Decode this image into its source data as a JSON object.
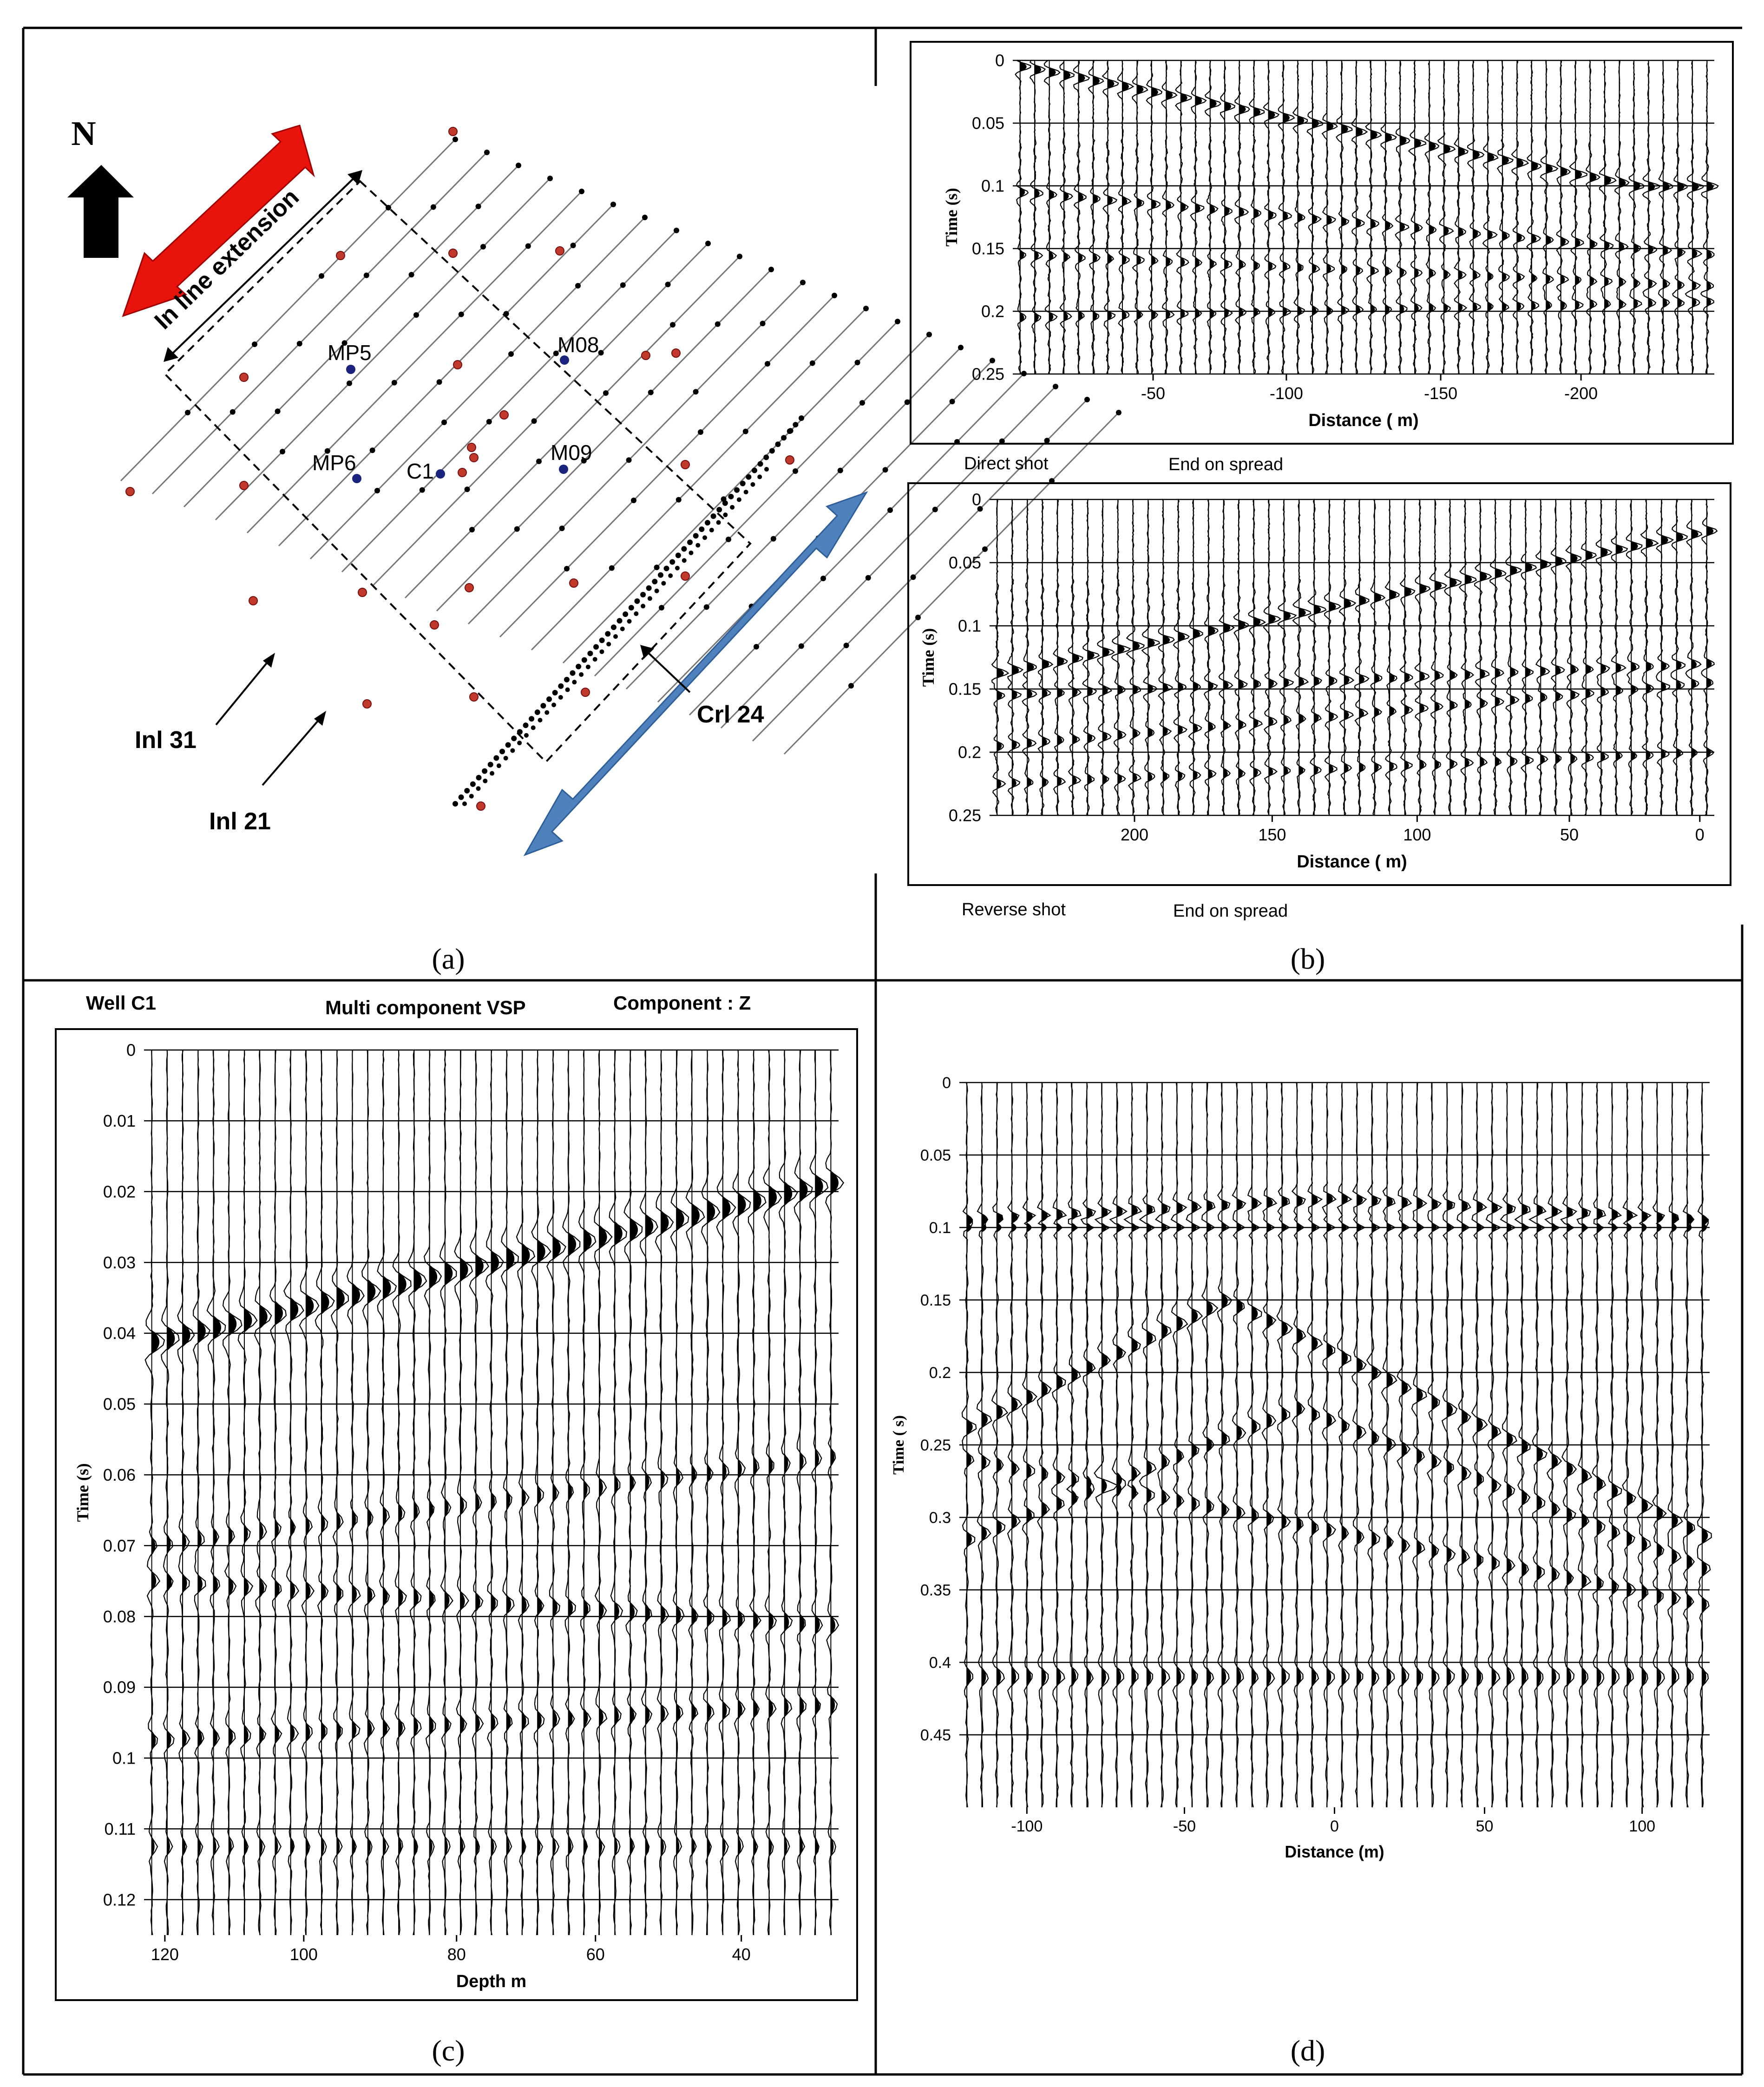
{
  "panels": {
    "a": {
      "caption": "(a)",
      "north": "N",
      "inline_extension": "In line extension",
      "inl31": "Inl 31",
      "inl21": "Inl 21",
      "crl24": "Crl 24",
      "wells": [
        "MP5",
        "M08",
        "MP6",
        "C1",
        "M09"
      ],
      "colors": {
        "red_arrow": "#e8140c",
        "blue_arrow": "#4f81bd",
        "red_dot": "#c0392b",
        "blue_dot": "#1a237e"
      }
    },
    "b": {
      "caption": "(b)",
      "top": {
        "ylabel": "Time (s)",
        "xlabel": "Distance ( m)",
        "yticks": [
          "0",
          "0.05",
          "0.1",
          "0.15",
          "0.2",
          "0.25"
        ],
        "xticks": [
          "-50",
          "-100",
          "-150",
          "-200"
        ],
        "note_left": "Direct shot",
        "note_right": "End on spread"
      },
      "bottom": {
        "ylabel": "Time (s)",
        "xlabel": "Distance ( m)",
        "yticks": [
          "0",
          "0.05",
          "0.1",
          "0.15",
          "0.2",
          "0.25"
        ],
        "xticks": [
          "200",
          "150",
          "100",
          "50",
          "0"
        ],
        "note_left": "Reverse shot",
        "note_right": "End on spread"
      }
    },
    "c": {
      "caption": "(c)",
      "title_left": "Well C1",
      "title_mid": "Multi component VSP",
      "title_right": "Component : Z",
      "ylabel": "Time (s)",
      "xlabel": "Depth m",
      "yticks": [
        "0",
        "0.01",
        "0.02",
        "0.03",
        "0.04",
        "0.05",
        "0.06",
        "0.07",
        "0.08",
        "0.09",
        "0.1",
        "0.11",
        "0.12"
      ],
      "xticks": [
        "120",
        "100",
        "80",
        "60",
        "40"
      ]
    },
    "d": {
      "caption": "(d)",
      "ylabel": "Time ( s)",
      "xlabel": "Distance (m)",
      "yticks": [
        "0",
        "0.05",
        "0.1",
        "0.15",
        "0.2",
        "0.25",
        "0.3",
        "0.35",
        "0.4",
        "0.45"
      ],
      "xticks": [
        "-100",
        "-50",
        "0",
        "50",
        "100"
      ]
    }
  }
}
